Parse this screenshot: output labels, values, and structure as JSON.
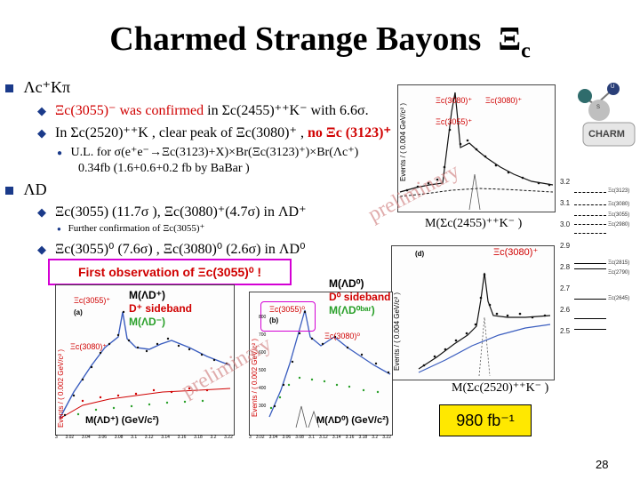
{
  "slide": {
    "title": "Charmed Strange Bayons",
    "title_symbol": "Ξ",
    "title_sub": "c",
    "page_number": "28"
  },
  "bullets": {
    "b1": "Λc⁺Kπ",
    "b1_1_red": "Ξc(3055)⁻ was confirmed",
    "b1_1_rest": "in Σc(2455)⁺⁺K⁻ with 6.6σ.",
    "b1_2_pre": "In Σc(2520)⁺⁺K , clear peak of Ξc(3080)⁺ ,",
    "b1_2_red": "no Ξc (3123)⁺",
    "b1_3_line1": "U.L. for σ(e⁺e⁻→Ξc(3123)+X)×Br(Ξc(3123)⁺)×Br(Λc⁺)",
    "b1_3_line2": "0.34fb  (1.6+0.6+0.2 fb by BaBar )",
    "b2": "ΛD",
    "b2_1": "Ξc(3055)  (11.7σ ), Ξc(3080)⁺(4.7σ) in ΛD⁺",
    "b2_1_sub": "Further confirmation of Ξc(3055)⁺",
    "b2_2": "Ξc(3055)⁰ (7.6σ) , Ξc(3080)⁰ (2.6σ) in  ΛD⁰"
  },
  "banner": {
    "text_pre": "First observation of",
    "text_sym": "Ξc(3055)⁰ !"
  },
  "plot_top": {
    "ylabel": "Events / ( 0.004 GeV/c² )",
    "label_a": "Ξc(3080)⁺",
    "label_b": "Ξc(3055)⁺",
    "xlabel": "M(Σc(2455)⁺⁺K⁻ )",
    "watermark": "preliminary"
  },
  "plot_mid": {
    "label": "Ξc(3080)⁺",
    "ylabel": "Events / ( 0.004 GeV/c² )",
    "xlabel": "M(Σc(2520)⁺⁺K⁻ )",
    "panel": "(d)"
  },
  "plot_left": {
    "ylabel": "Events / ( 0.002 GeV/c² )",
    "label_a": "Ξc(3055)⁺",
    "label_b": "Ξc(3080)⁺",
    "panel": "(a)",
    "xlabel": "M(ΛD⁺) (GeV/c²)",
    "ticks": [
      "3",
      "3.02",
      "3.04",
      "3.06",
      "3.08",
      "3.1",
      "3.12",
      "3.14",
      "3.16",
      "3.18",
      "3.2",
      "3.22"
    ]
  },
  "plot_right": {
    "ylabel": "Events / ( 0.002 GeV/c² )",
    "label_a": "Ξc(3055)⁰",
    "label_b": "Ξc(3080)⁰",
    "panel": "(b)",
    "xlabel": "M(ΛD⁰) (GeV/c²)",
    "ticks": [
      "3",
      "3.02",
      "3.04",
      "3.06",
      "3.08",
      "3.1",
      "3.12",
      "3.14",
      "3.16",
      "3.18",
      "3.2",
      "3.22"
    ],
    "yticks": [
      "800",
      "700",
      "600",
      "500",
      "400",
      "300"
    ]
  },
  "legend_left": {
    "l1": "M(ΛD⁺)",
    "l2": "D⁺ sideband",
    "l3": "M(ΛD⁻)"
  },
  "legend_right": {
    "l1": "M(ΛD⁰)",
    "l2": "D⁰ sideband",
    "l3": "M(ΛD⁰ᵇᵃʳ)"
  },
  "watermark_bottom": "preliminary",
  "luminosity": "980 fb⁻¹",
  "levels": {
    "ticks": [
      "3.2",
      "3.1",
      "3.0",
      "2.9",
      "2.8",
      "2.7",
      "2.6",
      "2.5"
    ],
    "labels": [
      "Ξc(3123)",
      "Ξc(3080)",
      "Ξc(3055)",
      "Ξc(2980)",
      "Ξc(2815)",
      "Ξc(2790)",
      "Ξc(2645)"
    ]
  },
  "image_labels": {
    "charm": "CHARM",
    "ball_s": "S",
    "ball_u": "U"
  },
  "colors": {
    "accent_red": "#d00000",
    "bullet_blue": "#1a3a8a",
    "banner_border": "#d400d4",
    "lumi_bg": "#ffe800"
  }
}
